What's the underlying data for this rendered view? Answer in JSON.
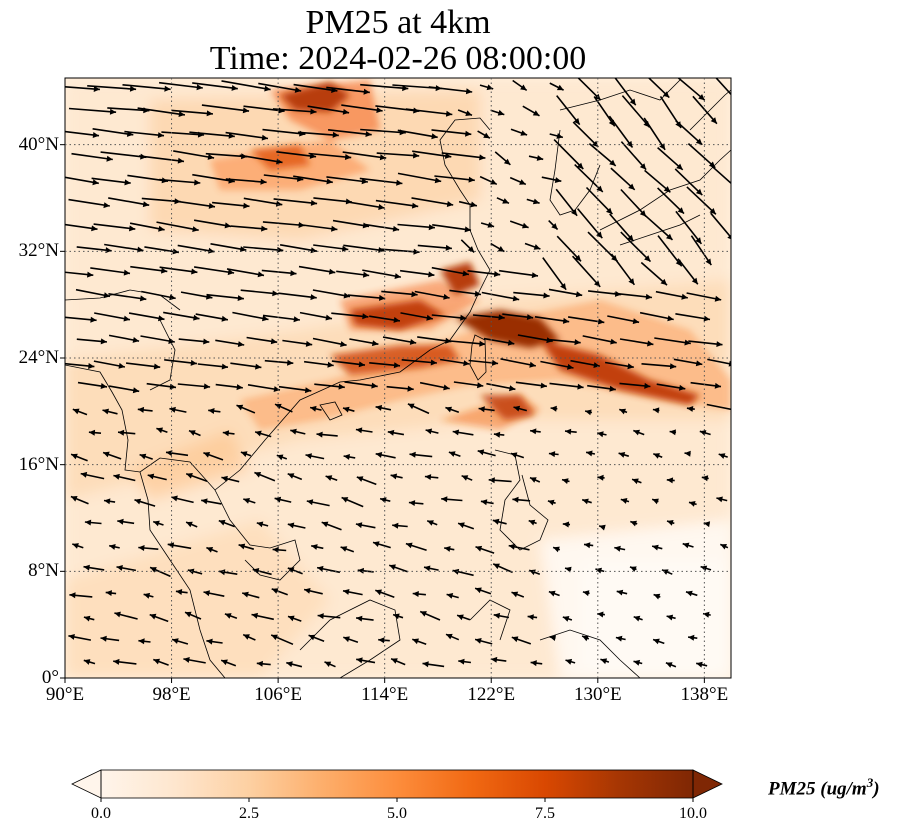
{
  "title": {
    "line1": "PM25 at 4km",
    "line2": "Time: 2024-02-26 08:00:00"
  },
  "map": {
    "lon_range": [
      90,
      140
    ],
    "lat_range": [
      0,
      45
    ],
    "gridlines": "dotted",
    "x_ticks": [
      "90°E",
      "98°E",
      "106°E",
      "114°E",
      "122°E",
      "130°E",
      "138°E"
    ],
    "x_tick_values": [
      90,
      98,
      106,
      114,
      122,
      130,
      138
    ],
    "y_ticks": [
      "0°",
      "8°N",
      "16°N",
      "24°N",
      "32°N",
      "40°N"
    ],
    "y_tick_values": [
      0,
      8,
      16,
      24,
      32,
      40
    ],
    "field": "PM25 concentration with wind vectors"
  },
  "colorbar": {
    "label": "PM25 (ug/m",
    "label_sup": "3",
    "label_close": ")",
    "ticks": [
      "0.0",
      "2.5",
      "5.0",
      "7.5",
      "10.0"
    ],
    "tick_values": [
      0,
      2.5,
      5,
      7.5,
      10
    ],
    "range": [
      0,
      10
    ],
    "extend": "both",
    "colormap": [
      "#fff5eb",
      "#fee6ce",
      "#fdd0a2",
      "#fdae6b",
      "#fd8d3c",
      "#f16913",
      "#d94801",
      "#a63603",
      "#7f2704"
    ]
  }
}
